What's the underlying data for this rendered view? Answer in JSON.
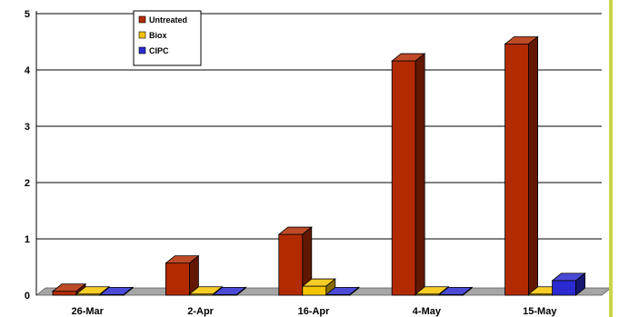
{
  "chart_data": {
    "type": "bar",
    "categories": [
      "26-Mar",
      "2-Apr",
      "16-Apr",
      "4-May",
      "15-May"
    ],
    "series": [
      {
        "name": "Untreated",
        "values": [
          0.07,
          0.57,
          1.08,
          4.16,
          4.46
        ]
      },
      {
        "name": "Biox",
        "values": [
          0.02,
          0.02,
          0.16,
          0.02,
          0.02
        ]
      },
      {
        "name": "CIPC",
        "values": [
          0.01,
          0.01,
          0.01,
          0.01,
          0.26
        ]
      }
    ],
    "yticks": [
      "0",
      "1",
      "2",
      "3",
      "4",
      "5"
    ],
    "ylim": [
      0,
      5
    ],
    "grid": true,
    "legend_position": "top-left",
    "three_d": true
  },
  "colors": {
    "Untreated": "#b22b00",
    "Biox": "#f5c400",
    "CIPC": "#2a2ad0",
    "floor": "#a6a6a6",
    "right_border": "#c8d848"
  }
}
